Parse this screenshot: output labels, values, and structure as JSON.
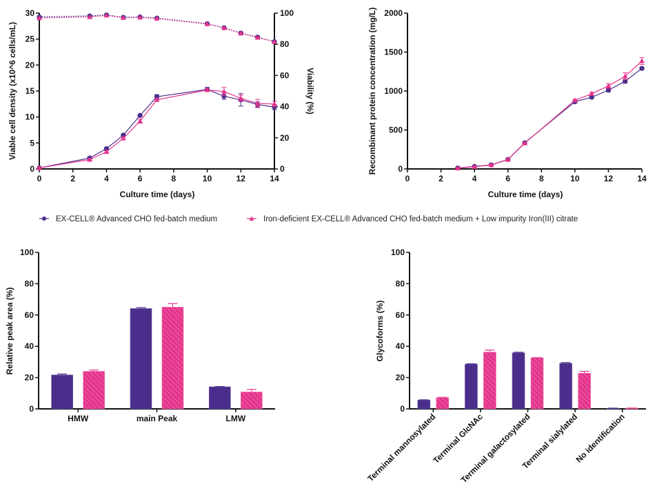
{
  "colors": {
    "series1": "#4b2e8c",
    "series2": "#e4348c"
  },
  "legend": {
    "items": [
      {
        "label": "EX-CELL® Advanced CHO fed-batch medium",
        "marker": "circle",
        "color_key": "series1"
      },
      {
        "label": "Iron-deficient EX-CELL® Advanced CHO fed-batch medium + Low impurity Iron(III) citrate",
        "marker": "triangle",
        "color_key": "series2"
      }
    ]
  },
  "chart_data": [
    {
      "id": "vcd",
      "type": "line",
      "title": "",
      "xlabel": "Culture time (days)",
      "ylabel": "Viable cell density (x10^6 cells/mL)",
      "y2label": "Viability (%)",
      "xlim": [
        0,
        14
      ],
      "ylim": [
        0,
        30
      ],
      "y2lim": [
        0,
        100
      ],
      "xticks": [
        0,
        2,
        4,
        6,
        8,
        10,
        12,
        14
      ],
      "yticks": [
        0,
        5,
        10,
        15,
        20,
        25,
        30
      ],
      "y2ticks": [
        0,
        20,
        40,
        60,
        80,
        100
      ],
      "x": [
        0,
        3,
        4,
        5,
        6,
        7,
        10,
        11,
        12,
        13,
        14
      ],
      "series": [
        {
          "name": "EX-CELL® Advanced CHO fed-batch medium",
          "axis": "left",
          "style": "solid",
          "marker": "circle",
          "color_key": "series1",
          "values": [
            0.2,
            2.1,
            3.9,
            6.5,
            10.3,
            13.9,
            15.3,
            14.0,
            13.3,
            12.4,
            11.9
          ],
          "errors": [
            0.1,
            0.2,
            0.2,
            0.2,
            0.2,
            0.4,
            0.4,
            0.6,
            1.2,
            0.5,
            0.5
          ]
        },
        {
          "name": "Iron-deficient EX-CELL® Advanced CHO fed-batch medium + Low impurity Iron(III) citrate",
          "axis": "left",
          "style": "solid",
          "marker": "triangle",
          "color_key": "series2",
          "values": [
            0.2,
            1.8,
            3.3,
            5.9,
            9.2,
            13.3,
            15.2,
            14.9,
            13.6,
            12.6,
            12.5
          ],
          "errors": [
            0.1,
            0.2,
            0.2,
            0.2,
            0.4,
            0.3,
            0.3,
            0.8,
            0.6,
            0.8,
            0.5
          ]
        },
        {
          "name": "EX-CELL® Advanced CHO fed-batch medium (viability)",
          "axis": "right",
          "style": "dotted",
          "marker": "circle",
          "color_key": "series1",
          "values": [
            97.5,
            98.2,
            98.8,
            97.3,
            97.5,
            96.8,
            93.2,
            90.6,
            87.2,
            84.6,
            81.7
          ]
        },
        {
          "name": "Iron-deficient EX-CELL® Advanced CHO fed-batch medium + Low impurity Iron(III) citrate (viability)",
          "axis": "right",
          "style": "dotted",
          "marker": "triangle",
          "color_key": "series2",
          "values": [
            96.8,
            97.5,
            98.5,
            97.0,
            97.2,
            96.5,
            93.0,
            90.5,
            87.0,
            84.3,
            81.6
          ]
        }
      ]
    },
    {
      "id": "protein",
      "type": "line",
      "title": "",
      "xlabel": "Culture time (days)",
      "ylabel": "Recombinant protein concentration (mg/L)",
      "xlim": [
        0,
        14
      ],
      "ylim": [
        0,
        2000
      ],
      "xticks": [
        0,
        2,
        4,
        6,
        8,
        10,
        12,
        14
      ],
      "yticks": [
        0,
        500,
        1000,
        1500,
        2000
      ],
      "x": [
        3,
        4,
        5,
        6,
        7,
        10,
        11,
        12,
        13,
        14
      ],
      "series": [
        {
          "name": "EX-CELL® Advanced CHO fed-batch medium",
          "marker": "circle",
          "color_key": "series1",
          "values": [
            12,
            32,
            52,
            122,
            335,
            862,
            920,
            1010,
            1125,
            1290
          ],
          "errors": [
            5,
            5,
            8,
            10,
            10,
            15,
            15,
            20,
            25,
            15
          ]
        },
        {
          "name": "Iron-deficient EX-CELL® Advanced CHO fed-batch medium + Low impurity Iron(III) citrate",
          "marker": "triangle",
          "color_key": "series2",
          "values": [
            10,
            28,
            50,
            120,
            330,
            880,
            965,
            1065,
            1190,
            1385
          ],
          "errors": [
            5,
            5,
            8,
            10,
            10,
            15,
            20,
            30,
            45,
            45
          ]
        }
      ]
    },
    {
      "id": "sec",
      "type": "bar",
      "title": "",
      "xlabel": "",
      "ylabel": "Relative peak area (%)",
      "ylim": [
        0,
        100
      ],
      "yticks": [
        0,
        20,
        40,
        60,
        80,
        100
      ],
      "categories": [
        "HMW",
        "main Peak",
        "LMW"
      ],
      "series": [
        {
          "name": "EX-CELL® Advanced CHO fed-batch medium",
          "color_key": "series1",
          "pattern": "solid",
          "values": [
            21.7,
            64.1,
            14.1
          ],
          "errors": [
            0.6,
            0.6,
            0.2
          ]
        },
        {
          "name": "Iron-deficient EX-CELL® Advanced CHO fed-batch medium + Low impurity Iron(III) citrate",
          "color_key": "series2",
          "pattern": "hatched",
          "values": [
            24.0,
            65.0,
            10.8
          ],
          "errors": [
            0.8,
            2.3,
            1.6
          ]
        }
      ]
    },
    {
      "id": "glycan",
      "type": "bar",
      "title": "",
      "xlabel": "",
      "ylabel": "Glycoforms (%)",
      "ylim": [
        0,
        100
      ],
      "yticks": [
        0,
        20,
        40,
        60,
        80,
        100
      ],
      "categories": [
        "Terminal mannosylated",
        "Terminal GlcNAc",
        "Terminal galactosylated",
        "Terminal sialylated",
        "No identification"
      ],
      "series": [
        {
          "name": "EX-CELL® Advanced CHO fed-batch medium",
          "color_key": "series1",
          "pattern": "solid",
          "values": [
            5.6,
            28.6,
            35.8,
            29.1,
            0.4
          ],
          "errors": [
            0.2,
            0.2,
            0.4,
            0.5,
            0.1
          ]
        },
        {
          "name": "Iron-deficient EX-CELL® Advanced CHO fed-batch medium + Low impurity Iron(III) citrate",
          "color_key": "series2",
          "pattern": "hatched",
          "values": [
            7.2,
            36.3,
            32.6,
            22.8,
            0.5
          ],
          "errors": [
            0.2,
            1.3,
            0.2,
            1.2,
            0.1
          ]
        }
      ]
    }
  ]
}
